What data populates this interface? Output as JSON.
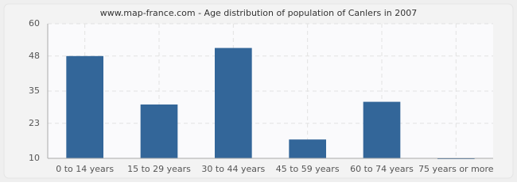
{
  "chart_data": {
    "type": "bar",
    "title": "www.map-france.com - Age distribution of population of Canlers in 2007",
    "categories": [
      "0 to 14 years",
      "15 to 29 years",
      "30 to 44 years",
      "45 to 59 years",
      "60 to 74 years",
      "75 years or more"
    ],
    "values": [
      48,
      30,
      51,
      17,
      31,
      10
    ],
    "color": "#336699",
    "ylim": [
      10,
      60
    ],
    "yticks": [
      10,
      23,
      35,
      48,
      60
    ],
    "grid": true
  }
}
